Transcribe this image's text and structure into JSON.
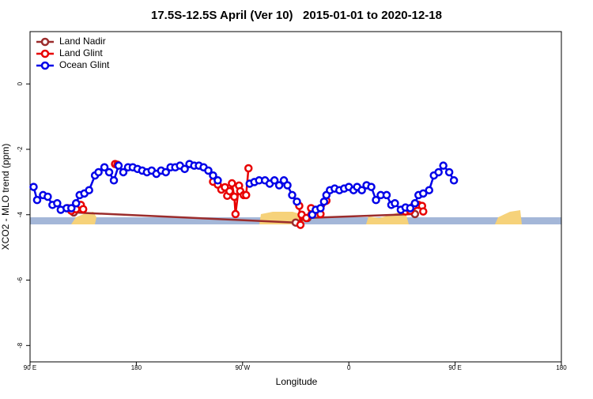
{
  "chart_data": {
    "type": "line",
    "title": "17.5S-12.5S April (Ver 10)   2015-01-01 to 2020-12-18",
    "x_label": "Longitude",
    "y_label": "XCO2 - MLO trend (ppm)",
    "xlim": [
      90,
      540
    ],
    "xticks": [
      {
        "value": 90,
        "label": "90 E"
      },
      180,
      {
        "value": 270,
        "label": "90 W"
      },
      {
        "value": 360,
        "label": "0"
      },
      {
        "value": 450,
        "label": "90 E"
      },
      {
        "value": 540,
        "label": "180"
      }
    ],
    "ylim": [
      -8.5,
      1.6
    ],
    "yticks": [
      0,
      -2,
      -4,
      -6,
      -8
    ],
    "legend": "top-left",
    "series": [
      {
        "name": "Land Nadir",
        "color": "#9b2c2c",
        "x": [
          127,
          315,
          325,
          416
        ],
        "values": [
          -3.93,
          -4.24,
          -4.1,
          -3.98
        ]
      },
      {
        "name": "Land Glint",
        "color": "#e80000",
        "x": [
          122,
          125,
          129,
          133,
          135,
          null,
          162,
          164,
          null,
          245,
          249,
          252,
          255,
          257,
          259,
          261,
          263,
          264,
          267,
          268,
          271,
          273,
          275,
          null,
          318,
          319,
          320,
          324,
          328,
          336,
          341,
          null,
          408,
          412,
          415,
          419,
          422,
          423
        ],
        "values": [
          -3.8,
          -3.88,
          -3.83,
          -3.7,
          -3.83,
          null,
          -2.45,
          -2.47,
          null,
          -2.99,
          -3.08,
          -3.23,
          -3.16,
          -3.42,
          -3.28,
          -3.04,
          -3.45,
          -3.98,
          -3.11,
          -3.28,
          -3.4,
          -3.4,
          -2.58,
          null,
          -3.73,
          -4.31,
          -4.0,
          -4.1,
          -3.8,
          -3.98,
          -3.57,
          null,
          -3.9,
          -3.88,
          -3.73,
          -3.7,
          -3.73,
          -3.9
        ]
      },
      {
        "name": "Ocean Glint",
        "color": "#0000e8",
        "x": [
          93,
          96,
          101,
          105,
          109,
          113,
          116,
          121,
          125,
          129,
          132,
          136,
          140,
          145,
          148,
          153,
          157,
          161,
          165,
          169,
          173,
          177,
          181,
          185,
          189,
          193,
          197,
          201,
          205,
          209,
          213,
          217,
          221,
          225,
          229,
          233,
          237,
          241,
          245,
          249,
          null,
          276,
          280,
          284,
          289,
          293,
          297,
          301,
          305,
          308,
          312,
          316,
          null,
          329,
          332,
          336,
          339,
          341,
          344,
          348,
          352,
          356,
          360,
          364,
          367,
          371,
          375,
          379,
          383,
          387,
          392,
          396,
          399,
          404,
          408,
          412,
          416,
          419,
          423,
          428,
          432,
          436,
          440,
          445,
          449
        ],
        "values": [
          -3.15,
          -3.55,
          -3.4,
          -3.45,
          -3.7,
          -3.65,
          -3.85,
          -3.8,
          -3.8,
          -3.65,
          -3.4,
          -3.35,
          -3.25,
          -2.8,
          -2.7,
          -2.55,
          -2.7,
          -2.95,
          -2.5,
          -2.7,
          -2.55,
          -2.55,
          -2.6,
          -2.65,
          -2.7,
          -2.65,
          -2.75,
          -2.65,
          -2.7,
          -2.55,
          -2.55,
          -2.5,
          -2.6,
          -2.45,
          -2.5,
          -2.5,
          -2.55,
          -2.65,
          -2.8,
          -2.95,
          null,
          -3.05,
          -3.0,
          -2.95,
          -2.95,
          -3.05,
          -2.95,
          -3.1,
          -2.95,
          -3.1,
          -3.4,
          -3.6,
          null,
          -4.0,
          -3.85,
          -3.8,
          -3.6,
          -3.4,
          -3.25,
          -3.2,
          -3.25,
          -3.2,
          -3.15,
          -3.25,
          -3.15,
          -3.25,
          -3.1,
          -3.15,
          -3.55,
          -3.4,
          -3.4,
          -3.7,
          -3.65,
          -3.85,
          -3.78,
          -3.8,
          -3.65,
          -3.4,
          -3.35,
          -3.25,
          -2.8,
          -2.7,
          -2.5,
          -2.7,
          -2.95
        ]
      }
    ]
  }
}
